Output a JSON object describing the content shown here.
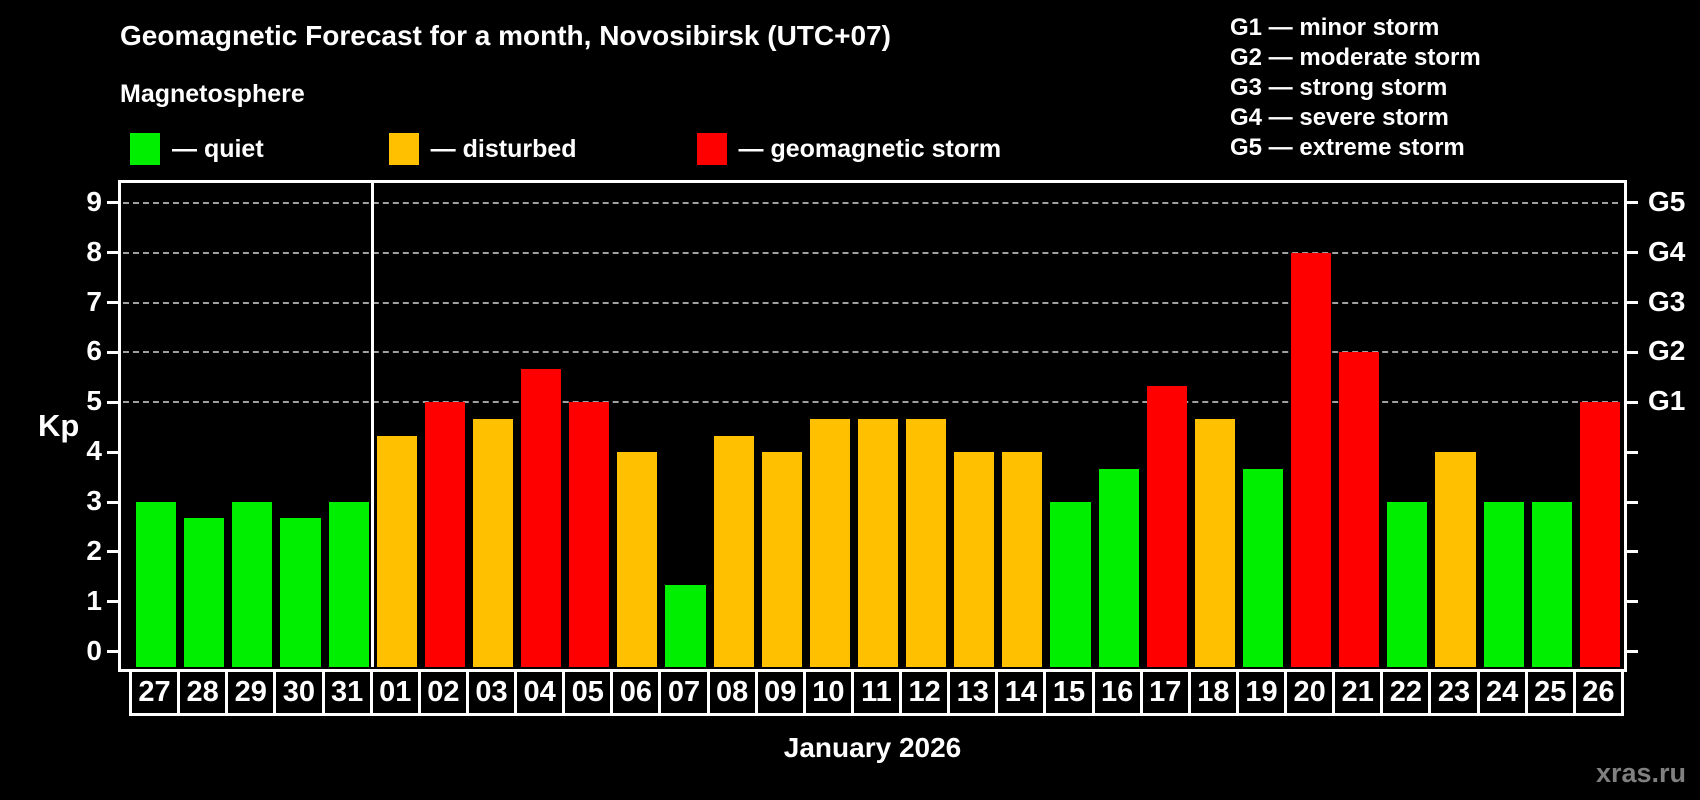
{
  "title": "Geomagnetic Forecast for a month, Novosibirsk (UTC+07)",
  "subtitle": "Magnetosphere",
  "legend": {
    "items": [
      {
        "key": "quiet",
        "label": "— quiet",
        "color": "#00ee00"
      },
      {
        "key": "disturbed",
        "label": "— disturbed",
        "color": "#ffc000"
      },
      {
        "key": "storm",
        "label": "— geomagnetic storm",
        "color": "#ff0000"
      }
    ]
  },
  "g_legend": {
    "items": [
      "G1 — minor storm",
      "G2 — moderate storm",
      "G3 — strong storm",
      "G4 — severe storm",
      "G5 — extreme storm"
    ]
  },
  "axis": {
    "ylabel": "Kp"
  },
  "footer": {
    "caption": "January 2026",
    "watermark": "xras.ru"
  },
  "chart_data": {
    "type": "bar",
    "title": "Geomagnetic Forecast for a month, Novosibirsk (UTC+07)",
    "ylabel": "Kp",
    "xlabel": "January 2026",
    "ylim": [
      -0.35,
      9.4
    ],
    "yticks": [
      0,
      1,
      2,
      3,
      4,
      5,
      6,
      7,
      8,
      9
    ],
    "grid": "horizontal dashed lines at Kp 5 to 9 only",
    "legend_position": "top",
    "right_axis": [
      {
        "kp": 5,
        "label": "G1"
      },
      {
        "kp": 6,
        "label": "G2"
      },
      {
        "kp": 7,
        "label": "G3"
      },
      {
        "kp": 8,
        "label": "G4"
      },
      {
        "kp": 9,
        "label": "G5"
      }
    ],
    "colors": {
      "quiet": "#00ee00",
      "disturbed": "#ffc000",
      "storm": "#ff0000"
    },
    "month_separator_after_index": 4,
    "categories": [
      "27",
      "28",
      "29",
      "30",
      "31",
      "01",
      "02",
      "03",
      "04",
      "05",
      "06",
      "07",
      "08",
      "09",
      "10",
      "11",
      "12",
      "13",
      "14",
      "15",
      "16",
      "17",
      "18",
      "19",
      "20",
      "21",
      "22",
      "23",
      "24",
      "25",
      "26"
    ],
    "days": [
      {
        "day": "27",
        "kp": 3.0,
        "status": "quiet"
      },
      {
        "day": "28",
        "kp": 2.67,
        "status": "quiet"
      },
      {
        "day": "29",
        "kp": 3.0,
        "status": "quiet"
      },
      {
        "day": "30",
        "kp": 2.67,
        "status": "quiet"
      },
      {
        "day": "31",
        "kp": 3.0,
        "status": "quiet"
      },
      {
        "day": "01",
        "kp": 4.33,
        "status": "disturbed"
      },
      {
        "day": "02",
        "kp": 5.0,
        "status": "storm"
      },
      {
        "day": "03",
        "kp": 4.67,
        "status": "disturbed"
      },
      {
        "day": "04",
        "kp": 5.67,
        "status": "storm"
      },
      {
        "day": "05",
        "kp": 5.0,
        "status": "storm"
      },
      {
        "day": "06",
        "kp": 4.0,
        "status": "disturbed"
      },
      {
        "day": "07",
        "kp": 1.33,
        "status": "quiet"
      },
      {
        "day": "08",
        "kp": 4.33,
        "status": "disturbed"
      },
      {
        "day": "09",
        "kp": 4.0,
        "status": "disturbed"
      },
      {
        "day": "10",
        "kp": 4.67,
        "status": "disturbed"
      },
      {
        "day": "11",
        "kp": 4.67,
        "status": "disturbed"
      },
      {
        "day": "12",
        "kp": 4.67,
        "status": "disturbed"
      },
      {
        "day": "13",
        "kp": 4.0,
        "status": "disturbed"
      },
      {
        "day": "14",
        "kp": 4.0,
        "status": "disturbed"
      },
      {
        "day": "15",
        "kp": 3.0,
        "status": "quiet"
      },
      {
        "day": "16",
        "kp": 3.67,
        "status": "quiet"
      },
      {
        "day": "17",
        "kp": 5.33,
        "status": "storm"
      },
      {
        "day": "18",
        "kp": 4.67,
        "status": "disturbed"
      },
      {
        "day": "19",
        "kp": 3.67,
        "status": "quiet"
      },
      {
        "day": "20",
        "kp": 8.0,
        "status": "storm"
      },
      {
        "day": "21",
        "kp": 6.0,
        "status": "storm"
      },
      {
        "day": "22",
        "kp": 3.0,
        "status": "quiet"
      },
      {
        "day": "23",
        "kp": 4.0,
        "status": "disturbed"
      },
      {
        "day": "24",
        "kp": 3.0,
        "status": "quiet"
      },
      {
        "day": "25",
        "kp": 3.0,
        "status": "quiet"
      },
      {
        "day": "26",
        "kp": 5.0,
        "status": "storm"
      }
    ]
  }
}
